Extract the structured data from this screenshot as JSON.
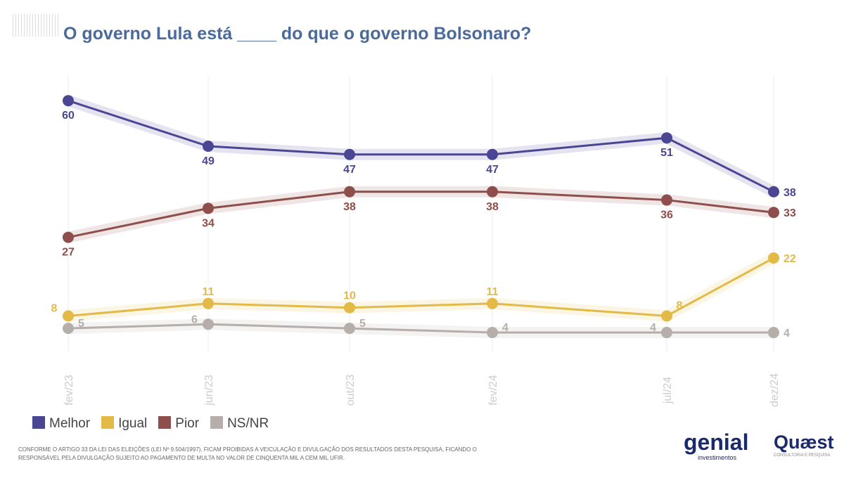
{
  "title": "O governo Lula está ____ do que o governo Bolsonaro?",
  "chart_data": {
    "type": "line",
    "title": "O governo Lula está ____ do que o governo Bolsonaro?",
    "categories": [
      "fev/23",
      "jun/23",
      "out/23",
      "fev/24",
      "jul/24",
      "dez/24"
    ],
    "series": [
      {
        "name": "Melhor",
        "color": "#4b4694",
        "values": [
          60,
          49,
          47,
          47,
          51,
          38
        ]
      },
      {
        "name": "Igual",
        "color": "#e3b948",
        "values": [
          8,
          11,
          10,
          11,
          8,
          22
        ]
      },
      {
        "name": "Pior",
        "color": "#8e4e4b",
        "values": [
          27,
          34,
          38,
          38,
          36,
          33
        ]
      },
      {
        "name": "NS/NR",
        "color": "#b5aeab",
        "values": [
          5,
          6,
          5,
          4,
          4,
          4
        ]
      }
    ],
    "ylim": [
      0,
      62
    ],
    "grid": false,
    "legend": "bottom-left"
  },
  "footer": {
    "note": "CONFORME O ARTIGO 33 DA LEI DAS ELEIÇÕES (LEI Nº 9.504/1997), FICAM PROIBIDAS A VEICULAÇÃO E DIVULGAÇÃO DOS RESULTADOS DESTA PESQUISA, FICANDO O RESPONSÁVEL PELA DIVULGAÇÃO SUJEITO AO PAGAMENTO DE MULTA NO VALOR DE CINQUENTA MIL A CEM MIL UFIR.",
    "logo1": "genial",
    "logo1_sub": "investimentos",
    "logo2": "Quæst",
    "logo2_sub": "CONSULTORIA E PESQUISA"
  }
}
